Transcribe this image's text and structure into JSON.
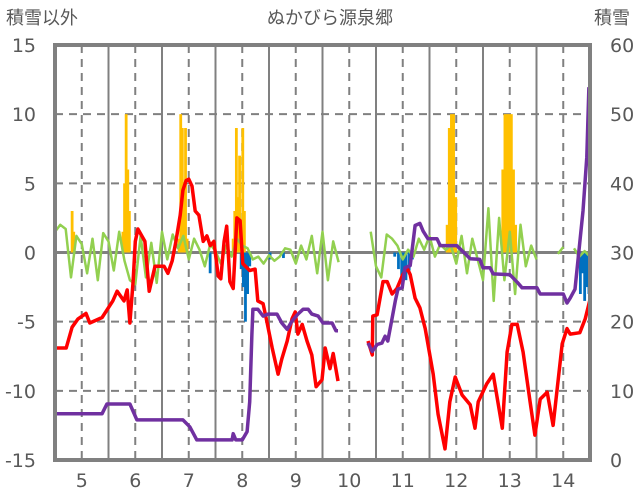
{
  "chart_data": {
    "type": "line",
    "title": "ぬかびら源泉郷",
    "ylabel": "積雪以外",
    "y2label": "積雪",
    "xlim": [
      4.5,
      14.5
    ],
    "ylim": [
      -15,
      15
    ],
    "y2lim": [
      0,
      60
    ],
    "x_ticks": [
      "5",
      "6",
      "7",
      "8",
      "9",
      "10",
      "11",
      "12",
      "13",
      "14"
    ],
    "y_ticks": [
      "15",
      "10",
      "5",
      "0",
      "-5",
      "-10",
      "-15"
    ],
    "y2_ticks": [
      "60",
      "50",
      "40",
      "30",
      "20",
      "10",
      "0"
    ],
    "grid": true,
    "colors": {
      "red": "#FF0000",
      "green": "#92D050",
      "purple": "#7030A0",
      "orange": "#FFC000",
      "blue": "#0070C0",
      "axis": "#808080"
    },
    "series": [
      {
        "name": "orange-bars",
        "type": "bar",
        "axis": "left",
        "color": "#FFC000",
        "points": [
          [
            4.82,
            3
          ],
          [
            4.85,
            1.5
          ],
          [
            5.77,
            1.5
          ],
          [
            5.8,
            5
          ],
          [
            5.83,
            10
          ],
          [
            5.86,
            6
          ],
          [
            5.89,
            3
          ],
          [
            6.82,
            1
          ],
          [
            6.85,
            10
          ],
          [
            6.88,
            9
          ],
          [
            6.91,
            5
          ],
          [
            6.94,
            9
          ],
          [
            6.97,
            1
          ],
          [
            7.83,
            1
          ],
          [
            7.86,
            3
          ],
          [
            7.89,
            9
          ],
          [
            7.92,
            4
          ],
          [
            7.95,
            7
          ],
          [
            7.98,
            2
          ],
          [
            8.01,
            9
          ],
          [
            8.04,
            3
          ],
          [
            11.83,
            2
          ],
          [
            11.87,
            9
          ],
          [
            11.91,
            10
          ],
          [
            11.95,
            10
          ],
          [
            11.99,
            4
          ],
          [
            12.87,
            6
          ],
          [
            12.91,
            10
          ],
          [
            12.95,
            10
          ],
          [
            12.99,
            10
          ],
          [
            13.03,
            10
          ],
          [
            13.07,
            6
          ],
          [
            13.11,
            2
          ]
        ]
      },
      {
        "name": "blue-bars",
        "type": "bar",
        "axis": "left",
        "color": "#0070C0",
        "points": [
          [
            7.4,
            -1.5
          ],
          [
            7.98,
            -1.2
          ],
          [
            8.02,
            -2.5
          ],
          [
            8.06,
            -5.0
          ],
          [
            8.1,
            -3.0
          ],
          [
            8.14,
            -1.0
          ],
          [
            8.52,
            -0.5
          ],
          [
            8.77,
            -0.4
          ],
          [
            10.85,
            -0.3
          ],
          [
            10.92,
            -1.2
          ],
          [
            10.98,
            -2.0
          ],
          [
            11.02,
            -1.5
          ],
          [
            11.06,
            -2.0
          ],
          [
            11.12,
            -1.3
          ],
          [
            11.18,
            -0.5
          ],
          [
            14.28,
            -1.0
          ],
          [
            14.32,
            -3.0
          ],
          [
            14.36,
            -1.5
          ],
          [
            14.4,
            -3.5
          ],
          [
            14.44,
            -2.5
          ],
          [
            14.48,
            -3.0
          ]
        ]
      },
      {
        "name": "green-line",
        "type": "line",
        "axis": "left",
        "color": "#92D050",
        "segments": [
          {
            "x_start": 4.5,
            "x_step": 0.1,
            "values": [
              1.5,
              2.0,
              1.7,
              -1.8,
              1.2,
              0.6,
              -1.5,
              1.0,
              -2.0,
              1.4,
              0.8,
              -1.3,
              1.5,
              -0.6,
              -2.0,
              -2.3,
              1.2,
              -1.8,
              0.7,
              -2.2,
              1.5,
              -0.5,
              1.3,
              0.3,
              1.2,
              -0.5,
              1.0,
              0.2,
              -1.0,
              0.6,
              0.1,
              -0.8,
              0.5,
              -0.3,
              1.0,
              0.5,
              0.3,
              -0.5,
              -0.3,
              -0.8,
              -0.2,
              -0.6,
              -0.3,
              0.3,
              0.2,
              -0.8,
              0.5,
              -0.5,
              1.2,
              -1.5,
              1.5,
              -2.0,
              0.8,
              -0.7
            ]
          },
          {
            "x_start": 10.4,
            "x_step": 0.1,
            "values": [
              1.5,
              -1.0,
              -1.8,
              1.3,
              1.0,
              0.5,
              -0.5,
              0.2,
              -0.3,
              1.0,
              0.2,
              1.2,
              -0.3,
              0.6,
              0.2,
              0.5,
              -0.8,
              1.2,
              -1.5,
              1.0,
              -0.5,
              -2.0,
              3.2,
              -3.5,
              2.5,
              -2.0,
              1.5,
              -3.0,
              2.0,
              -1.0,
              0.5,
              -0.5,
              null,
              0.3,
              null,
              -0.1,
              0.4,
              null,
              0.3,
              -0.3,
              0.1,
              -0.3
            ]
          }
        ]
      },
      {
        "name": "red-line",
        "type": "line",
        "axis": "left",
        "color": "#FF0000",
        "points": [
          [
            4.5,
            -6.9
          ],
          [
            4.63,
            -6.9
          ],
          [
            4.71,
            -6.9
          ],
          [
            4.82,
            -5.4
          ],
          [
            4.93,
            -4.8
          ],
          [
            5.08,
            -4.4
          ],
          [
            5.15,
            -5.1
          ],
          [
            5.38,
            -4.7
          ],
          [
            5.58,
            -3.5
          ],
          [
            5.66,
            -2.8
          ],
          [
            5.79,
            -3.5
          ],
          [
            5.85,
            -2.7
          ],
          [
            5.9,
            -5.1
          ],
          [
            5.96,
            -2.1
          ],
          [
            6.0,
            0.8
          ],
          [
            6.05,
            1.7
          ],
          [
            6.18,
            0.8
          ],
          [
            6.26,
            -2.8
          ],
          [
            6.37,
            -1.0
          ],
          [
            6.54,
            -1.0
          ],
          [
            6.61,
            -1.5
          ],
          [
            6.69,
            -0.6
          ],
          [
            6.76,
            0.8
          ],
          [
            6.84,
            2.7
          ],
          [
            6.89,
            4.5
          ],
          [
            6.95,
            5.2
          ],
          [
            7.0,
            5.3
          ],
          [
            7.06,
            4.8
          ],
          [
            7.12,
            3.0
          ],
          [
            7.19,
            2.7
          ],
          [
            7.27,
            0.8
          ],
          [
            7.34,
            1.2
          ],
          [
            7.4,
            0.5
          ],
          [
            7.47,
            0.8
          ],
          [
            7.55,
            -1.7
          ],
          [
            7.6,
            -1.9
          ],
          [
            7.66,
            0.8
          ],
          [
            7.71,
            1.9
          ],
          [
            7.77,
            -2.1
          ],
          [
            7.83,
            -2.6
          ],
          [
            7.9,
            2.5
          ],
          [
            7.96,
            2.3
          ],
          [
            8.01,
            -0.8
          ],
          [
            8.14,
            -1.3
          ],
          [
            8.24,
            -1.2
          ],
          [
            8.29,
            -3.5
          ],
          [
            8.39,
            -3.7
          ],
          [
            8.46,
            -5.0
          ],
          [
            8.56,
            -6.9
          ],
          [
            8.67,
            -8.8
          ],
          [
            8.74,
            -7.7
          ],
          [
            8.84,
            -6.4
          ],
          [
            8.93,
            -4.8
          ],
          [
            8.99,
            -4.3
          ],
          [
            9.04,
            -5.9
          ],
          [
            9.12,
            -5.2
          ],
          [
            9.21,
            -6.4
          ],
          [
            9.3,
            -7.4
          ],
          [
            9.38,
            -9.7
          ],
          [
            9.49,
            -9.2
          ],
          [
            9.55,
            -6.9
          ],
          [
            9.64,
            -8.4
          ],
          [
            9.7,
            -7.3
          ],
          [
            9.79,
            -9.3
          ],
          null,
          [
            10.35,
            -6.4
          ],
          [
            10.43,
            -7.4
          ],
          [
            10.44,
            -4.6
          ],
          [
            10.52,
            -4.5
          ],
          [
            10.63,
            -2.1
          ],
          [
            10.71,
            -2.1
          ],
          [
            10.8,
            -3.0
          ],
          [
            10.89,
            -2.6
          ],
          [
            11.0,
            -1.6
          ],
          [
            11.08,
            -1.1
          ],
          [
            11.14,
            -1.6
          ],
          [
            11.23,
            -3.3
          ],
          [
            11.32,
            -4.0
          ],
          [
            11.42,
            -5.5
          ],
          [
            11.57,
            -8.8
          ],
          [
            11.66,
            -11.7
          ],
          [
            11.79,
            -14.2
          ],
          [
            11.88,
            -10.8
          ],
          [
            11.98,
            -9.0
          ],
          [
            12.11,
            -10.3
          ],
          [
            12.26,
            -11.0
          ],
          [
            12.35,
            -12.7
          ],
          [
            12.41,
            -10.8
          ],
          [
            12.57,
            -9.5
          ],
          [
            12.69,
            -8.8
          ],
          [
            12.86,
            -12.7
          ],
          [
            12.95,
            -7.2
          ],
          [
            13.04,
            -5.2
          ],
          [
            13.14,
            -5.2
          ],
          [
            13.25,
            -7.2
          ],
          [
            13.38,
            -10.8
          ],
          [
            13.47,
            -13.2
          ],
          [
            13.57,
            -10.6
          ],
          [
            13.7,
            -10.1
          ],
          [
            13.81,
            -12.5
          ],
          [
            13.98,
            -6.6
          ],
          [
            14.07,
            -5.5
          ],
          [
            14.13,
            -5.9
          ],
          [
            14.31,
            -5.8
          ],
          [
            14.41,
            -4.8
          ],
          [
            14.5,
            -3.4
          ]
        ]
      },
      {
        "name": "purple-line",
        "type": "line",
        "axis": "right",
        "color": "#7030A0",
        "points": [
          [
            4.5,
            6.7
          ],
          [
            5.38,
            6.7
          ],
          [
            5.47,
            8.1
          ],
          [
            5.9,
            8.1
          ],
          [
            6.03,
            5.8
          ],
          [
            6.89,
            5.8
          ],
          [
            7.02,
            4.8
          ],
          [
            7.15,
            2.9
          ],
          [
            7.81,
            2.9
          ],
          [
            7.83,
            3.8
          ],
          [
            7.88,
            2.9
          ],
          [
            8.0,
            2.9
          ],
          [
            8.09,
            4.1
          ],
          [
            8.14,
            8.4
          ],
          [
            8.18,
            18.2
          ],
          [
            8.2,
            21.8
          ],
          [
            8.29,
            21.8
          ],
          [
            8.39,
            20.8
          ],
          [
            8.48,
            21.1
          ],
          [
            8.65,
            21.1
          ],
          [
            8.74,
            19.8
          ],
          [
            8.84,
            18.9
          ],
          [
            8.93,
            20.1
          ],
          [
            9.04,
            21.1
          ],
          [
            9.14,
            21.8
          ],
          [
            9.23,
            21.8
          ],
          [
            9.3,
            21.1
          ],
          [
            9.42,
            20.8
          ],
          [
            9.51,
            19.8
          ],
          [
            9.68,
            19.8
          ],
          [
            9.75,
            18.7
          ],
          [
            9.79,
            18.7
          ],
          null,
          [
            10.35,
            16.9
          ],
          [
            10.43,
            15.7
          ],
          [
            10.52,
            16.7
          ],
          [
            10.61,
            16.9
          ],
          [
            10.67,
            17.9
          ],
          [
            10.72,
            17.2
          ],
          [
            10.8,
            20.5
          ],
          [
            10.86,
            23.0
          ],
          [
            10.91,
            24.7
          ],
          [
            10.99,
            24.9
          ],
          [
            11.04,
            27.8
          ],
          [
            11.14,
            28.1
          ],
          [
            11.23,
            33.9
          ],
          [
            11.32,
            34.2
          ],
          [
            11.38,
            33.1
          ],
          [
            11.47,
            32.0
          ],
          [
            11.64,
            32.0
          ],
          [
            11.7,
            31.0
          ],
          [
            12.01,
            31.0
          ],
          [
            12.13,
            30.1
          ],
          [
            12.26,
            29.1
          ],
          [
            12.44,
            29.0
          ],
          [
            12.5,
            27.8
          ],
          [
            12.63,
            27.8
          ],
          [
            12.69,
            26.9
          ],
          [
            13.0,
            26.8
          ],
          [
            13.14,
            25.7
          ],
          [
            13.23,
            24.9
          ],
          [
            13.51,
            24.9
          ],
          [
            13.57,
            24.0
          ],
          [
            14.0,
            24.0
          ],
          [
            14.07,
            22.7
          ],
          [
            14.13,
            23.4
          ],
          [
            14.22,
            24.7
          ],
          [
            14.28,
            29.2
          ],
          [
            14.37,
            36.0
          ],
          [
            14.44,
            43.8
          ],
          [
            14.48,
            53.9
          ]
        ]
      }
    ]
  }
}
